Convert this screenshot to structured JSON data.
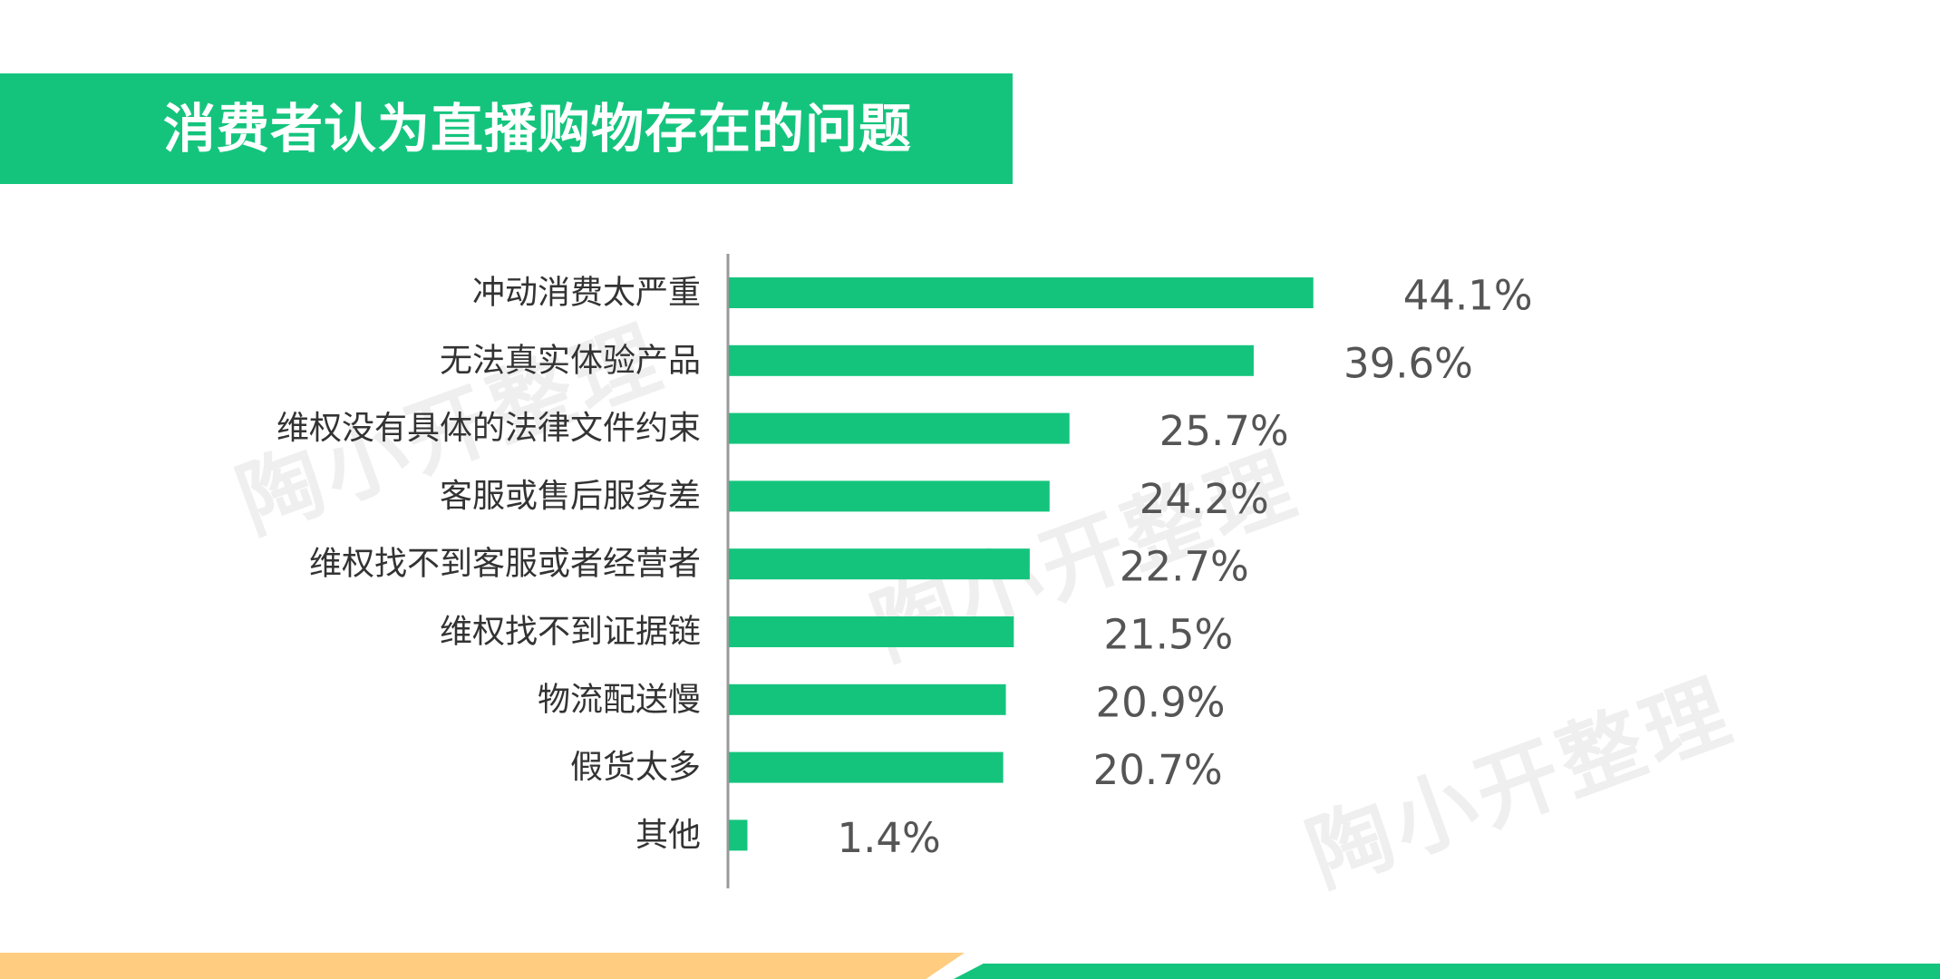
{
  "header": {
    "title": "消费者认为直播购物存在的问题"
  },
  "watermark": {
    "text": "陶小开整理"
  },
  "colors": {
    "bar": "#14c47d",
    "axis": "#999999",
    "accent_orange": "#ffcc80"
  },
  "chart_data": {
    "type": "bar",
    "orientation": "horizontal",
    "title": "消费者认为直播购物存在的问题",
    "xlabel": "",
    "ylabel": "",
    "unit": "%",
    "xlim": [
      0,
      50
    ],
    "grid": false,
    "legend": "none",
    "categories": [
      "冲动消费太严重",
      "无法真实体验产品",
      "维权没有具体的法律文件约束",
      "客服或售后服务差",
      "维权找不到客服或者经营者",
      "维权找不到证据链",
      "物流配送慢",
      "假货太多",
      "其他"
    ],
    "values": [
      44.1,
      39.6,
      25.7,
      24.2,
      22.7,
      21.5,
      20.9,
      20.7,
      1.4
    ],
    "value_labels": [
      "44.1%",
      "39.6%",
      "25.7%",
      "24.2%",
      "22.7%",
      "21.5%",
      "20.9%",
      "20.7%",
      "1.4%"
    ]
  }
}
